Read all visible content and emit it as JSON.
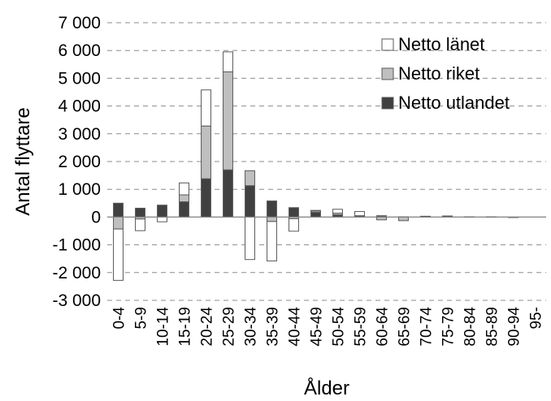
{
  "chart_data": {
    "type": "bar",
    "stacked": true,
    "title": "",
    "xlabel": "Ålder",
    "ylabel": "Antal flyttare",
    "ylim": [
      -3000,
      7000
    ],
    "yticks": [
      7000,
      6000,
      5000,
      4000,
      3000,
      2000,
      1000,
      0,
      -1000,
      -2000,
      -3000
    ],
    "ytick_labels": [
      "7 000",
      "6 000",
      "5 000",
      "4 000",
      "3 000",
      "2 000",
      "1 000",
      "0",
      "-1 000",
      "-2 000",
      "-3 000"
    ],
    "grid": "horizontal dashed",
    "legend_position": "top-right",
    "categories": [
      "0-4",
      "5-9",
      "10-14",
      "15-19",
      "20-24",
      "25-29",
      "30-34",
      "35-39",
      "40-44",
      "45-49",
      "50-54",
      "55-59",
      "60-64",
      "65-69",
      "70-74",
      "75-79",
      "80-84",
      "85-89",
      "90-94",
      "95-"
    ],
    "series": [
      {
        "name": "Netto utlandet",
        "color": "#404040",
        "values": [
          500,
          320,
          430,
          550,
          1380,
          1700,
          1130,
          580,
          340,
          170,
          80,
          30,
          20,
          10,
          20,
          20,
          10,
          10,
          0,
          0
        ]
      },
      {
        "name": "Netto riket",
        "color": "#bfbfbf",
        "values": [
          -430,
          -70,
          0,
          250,
          1900,
          3530,
          540,
          -160,
          -60,
          50,
          60,
          20,
          -100,
          -130,
          0,
          10,
          0,
          0,
          -10,
          0
        ]
      },
      {
        "name": "Netto länet",
        "color": "#ffffff",
        "values": [
          -1850,
          -420,
          -170,
          430,
          1300,
          720,
          -1530,
          -1420,
          -450,
          20,
          140,
          150,
          30,
          0,
          10,
          10,
          0,
          0,
          0,
          0
        ]
      }
    ]
  }
}
